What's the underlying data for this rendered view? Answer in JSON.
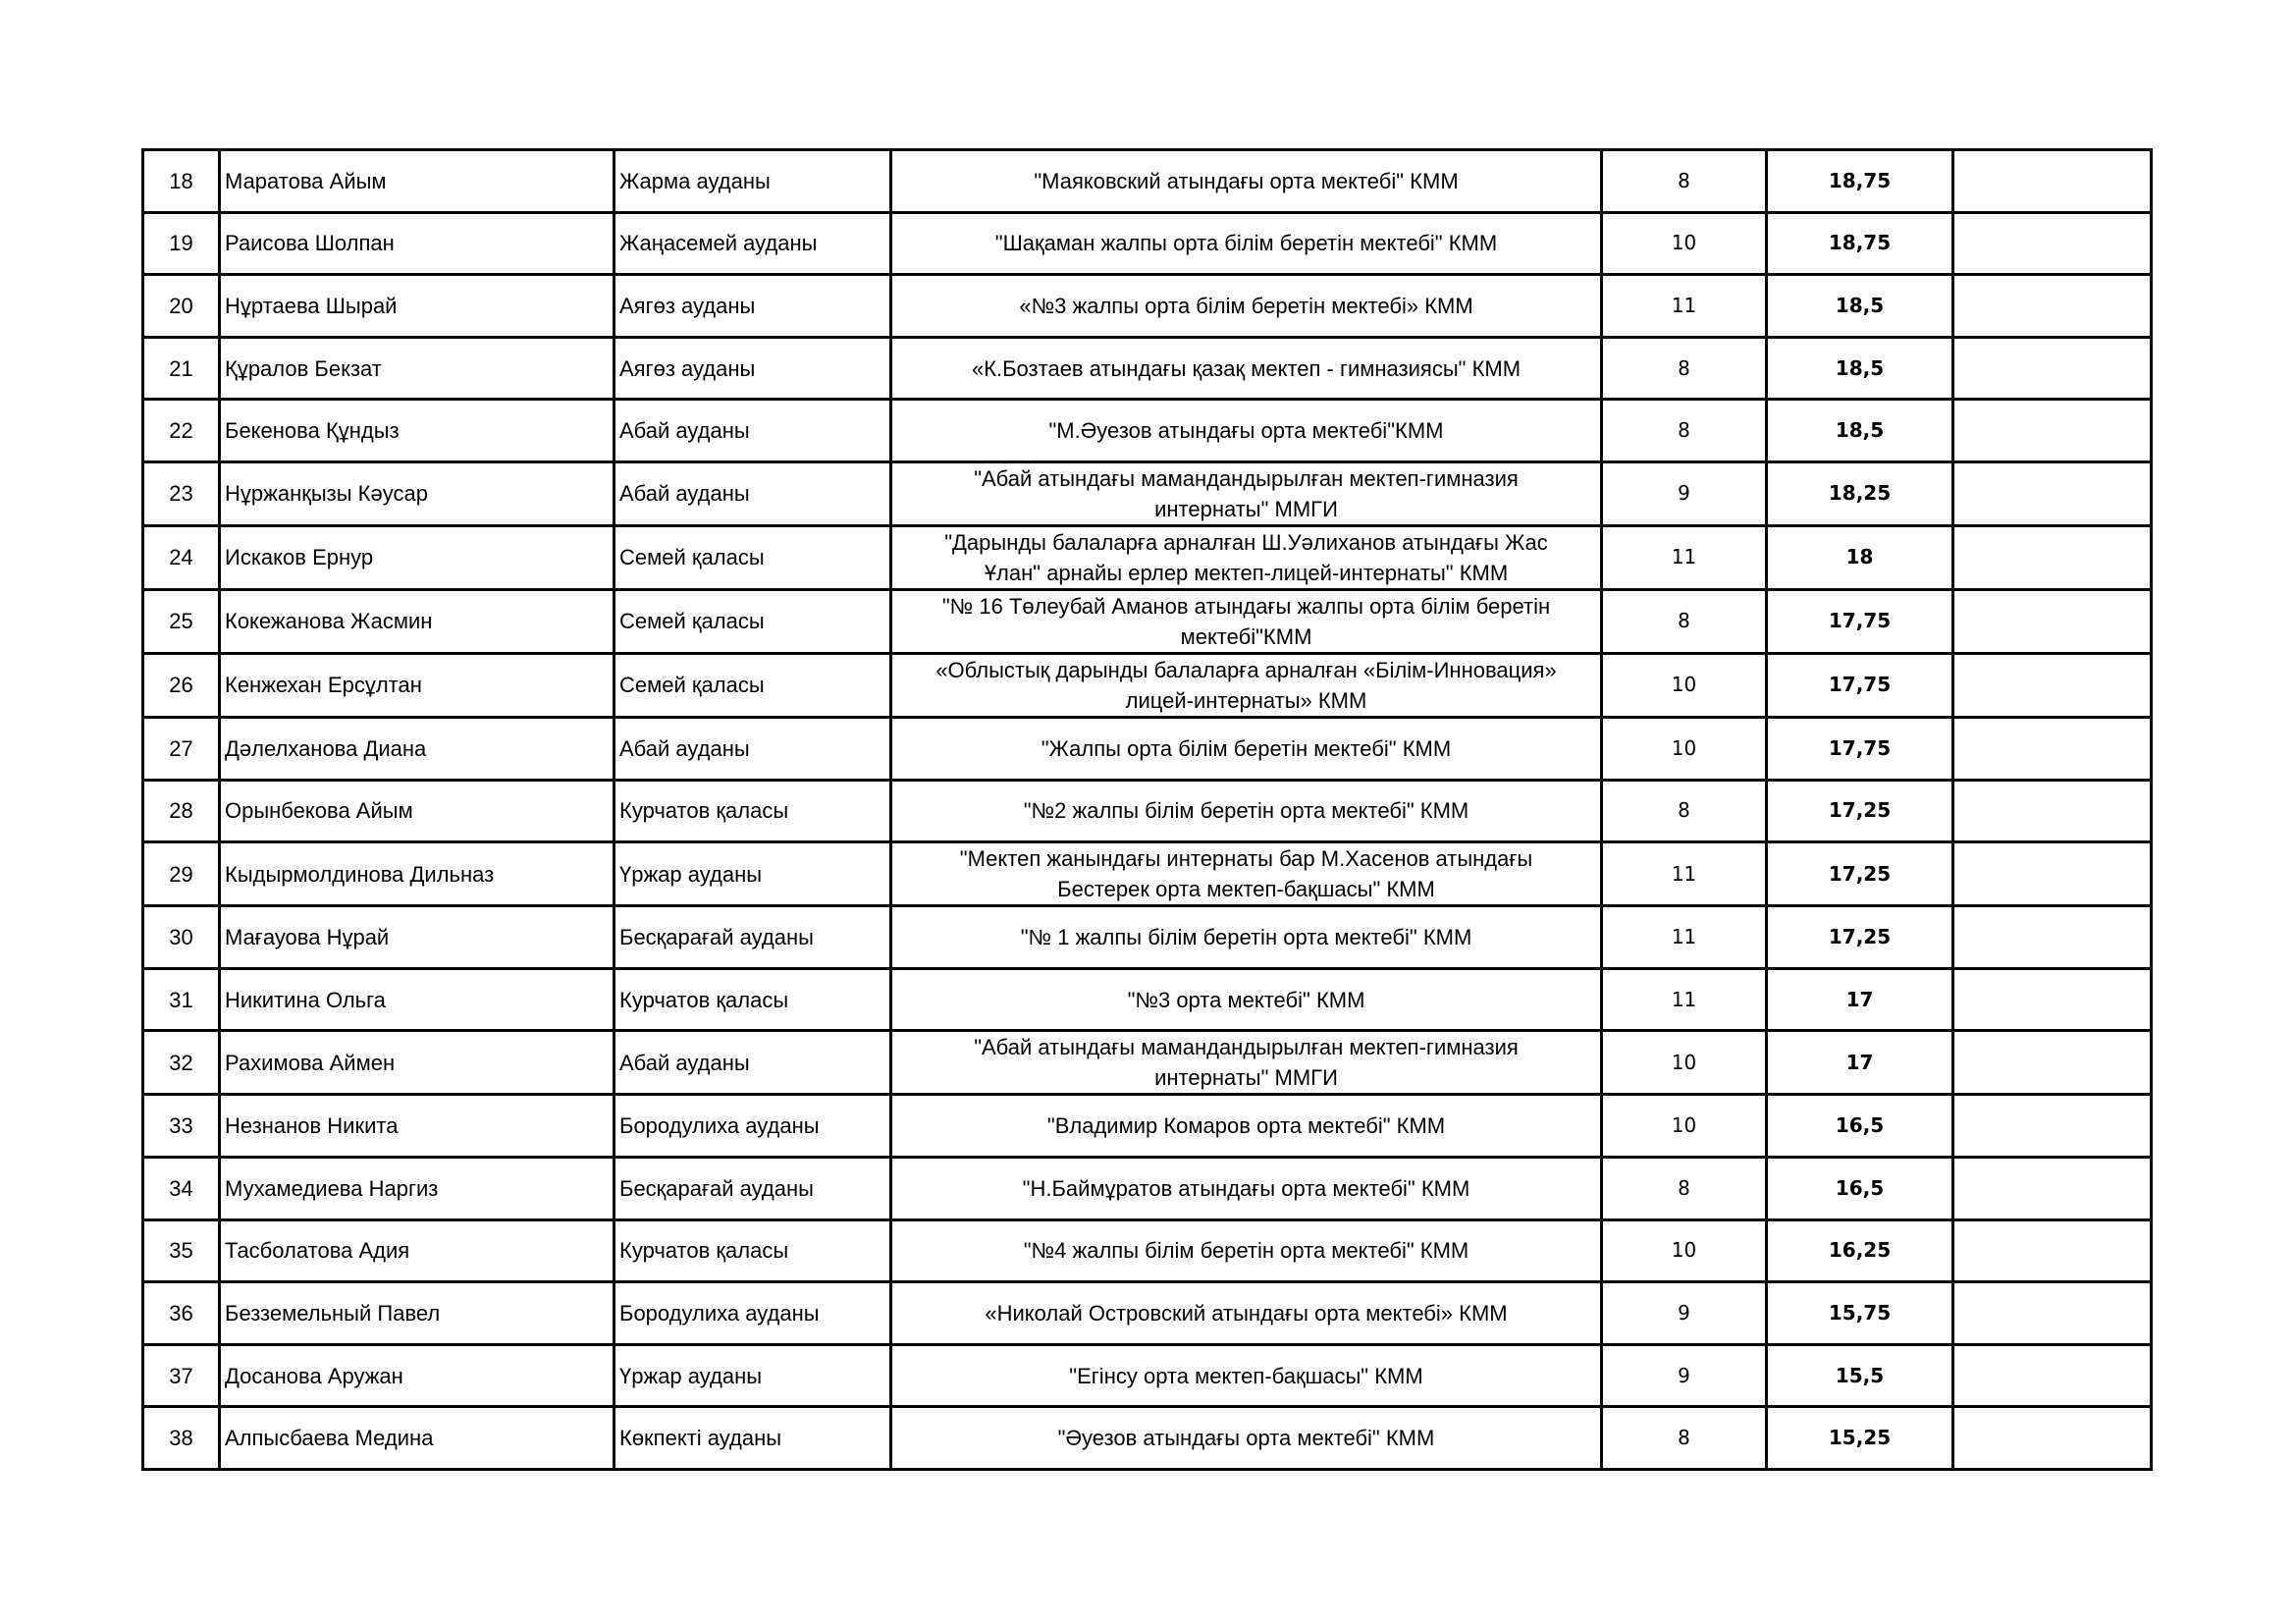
{
  "rows": [
    {
      "num": "18",
      "name": "Маратова Айым",
      "district": "Жарма ауданы",
      "school": "\"Маяковский атындағы орта мектебі\" КММ",
      "grade": "8",
      "score": "18,75",
      "note": ""
    },
    {
      "num": "19",
      "name": "Раисова Шолпан",
      "district": "Жаңасемей ауданы",
      "school": "\"Шақаман жалпы орта білім беретін мектебі\" КММ",
      "grade": "10",
      "score": "18,75",
      "note": ""
    },
    {
      "num": "20",
      "name": "Нұртаева Шырай",
      "district": "Аягөз ауданы",
      "school": "«№3 жалпы орта білім беретін мектебі» КММ",
      "grade": "11",
      "score": "18,5",
      "note": ""
    },
    {
      "num": "21",
      "name": "Құралов Бекзат",
      "district": "Аягөз ауданы",
      "school": "«К.Бозтаев атындағы қазақ мектеп - гимназиясы\" КММ",
      "grade": "8",
      "score": "18,5",
      "note": ""
    },
    {
      "num": "22",
      "name": "Бекенова Құндыз",
      "district": "Абай ауданы",
      "school": "\"М.Әуезов атындағы орта мектебі\"КММ",
      "grade": "8",
      "score": "18,5",
      "note": ""
    },
    {
      "num": "23",
      "name": "Нұржанқызы Кәусар",
      "district": "Абай ауданы",
      "school": "\"Абай атындағы мамандандырылған мектеп-гимназия интернаты\" ММГИ",
      "grade": "9",
      "score": "18,25",
      "note": ""
    },
    {
      "num": "24",
      "name": "Искаков Ернур",
      "district": "Семей қаласы",
      "school": "\"Дарынды балаларға арналған Ш.Уәлиханов атындағы Жас Ұлан\" арнайы ерлер мектеп-лицей-интернаты\" КММ",
      "grade": "11",
      "score": "18",
      "note": ""
    },
    {
      "num": "25",
      "name": "Кокежанова Жасмин",
      "district": "Семей қаласы",
      "school": "\"№ 16 Төлеубай Аманов атындағы жалпы орта білім беретін мектебі\"КММ",
      "grade": "8",
      "score": "17,75",
      "note": ""
    },
    {
      "num": "26",
      "name": "Кенжехан Ерсұлтан",
      "district": "Семей қаласы",
      "school": "«Облыстық дарынды балаларға арналған «Білім-Инновация» лицей-интернаты» КММ",
      "grade": "10",
      "score": "17,75",
      "note": ""
    },
    {
      "num": "27",
      "name": "Дәлелханова Диана",
      "district": "Абай ауданы",
      "school": "\"Жалпы орта білім беретін мектебі\" КММ",
      "grade": "10",
      "score": "17,75",
      "note": ""
    },
    {
      "num": "28",
      "name": "Орынбекова Айым",
      "district": "Курчатов қаласы",
      "school": "\"№2 жалпы білім беретін орта мектебі\" КММ",
      "grade": "8",
      "score": "17,25",
      "note": ""
    },
    {
      "num": "29",
      "name": "Кыдырмолдинова Дильназ",
      "district": "Үржар ауданы",
      "school": "\"Мектеп жанындағы интернаты бар М.Хасенов атындағы Бестерек орта мектеп-бақшасы\" КММ",
      "grade": "11",
      "score": "17,25",
      "note": ""
    },
    {
      "num": "30",
      "name": "Мағауова Нұрай",
      "district": "Бесқарағай ауданы",
      "school": "\"№ 1 жалпы білім беретін орта мектебі\" КММ",
      "grade": "11",
      "score": "17,25",
      "note": ""
    },
    {
      "num": "31",
      "name": "Никитина Ольга",
      "district": "Курчатов қаласы",
      "school": "\"№3 орта мектебі\" КММ",
      "grade": "11",
      "score": "17",
      "note": ""
    },
    {
      "num": "32",
      "name": "Рахимова Аймен",
      "district": "Абай ауданы",
      "school": "\"Абай атындағы мамандандырылған мектеп-гимназия интернаты\" ММГИ",
      "grade": "10",
      "score": "17",
      "note": ""
    },
    {
      "num": "33",
      "name": "Незнанов Никита",
      "district": "Бородулиха ауданы",
      "school": "\"Владимир Комаров орта мектебі\" КММ",
      "grade": "10",
      "score": "16,5",
      "note": ""
    },
    {
      "num": "34",
      "name": "Мухамедиева Наргиз",
      "district": "Бесқарағай ауданы",
      "school": "\"Н.Баймұратов атындағы орта мектебі\" КММ",
      "grade": "8",
      "score": "16,5",
      "note": ""
    },
    {
      "num": "35",
      "name": "Тасболатова Адия",
      "district": "Курчатов қаласы",
      "school": "\"№4  жалпы білім беретін орта мектебі\" КММ",
      "grade": "10",
      "score": "16,25",
      "note": ""
    },
    {
      "num": "36",
      "name": "Безземельный Павел",
      "district": "Бородулиха ауданы",
      "school": "«Николай Островский атындағы орта мектебі» КММ",
      "grade": "9",
      "score": "15,75",
      "note": ""
    },
    {
      "num": "37",
      "name": "Досанова Аружан",
      "district": "Үржар ауданы",
      "school": "\"Егінсу орта мектеп-бақшасы\" КММ",
      "grade": "9",
      "score": "15,5",
      "note": ""
    },
    {
      "num": "38",
      "name": "Алпысбаева Медина",
      "district": "Көкпекті ауданы",
      "school": "\"Әуезов атындағы орта мектебі\" КММ",
      "grade": "8",
      "score": "15,25",
      "note": ""
    }
  ]
}
